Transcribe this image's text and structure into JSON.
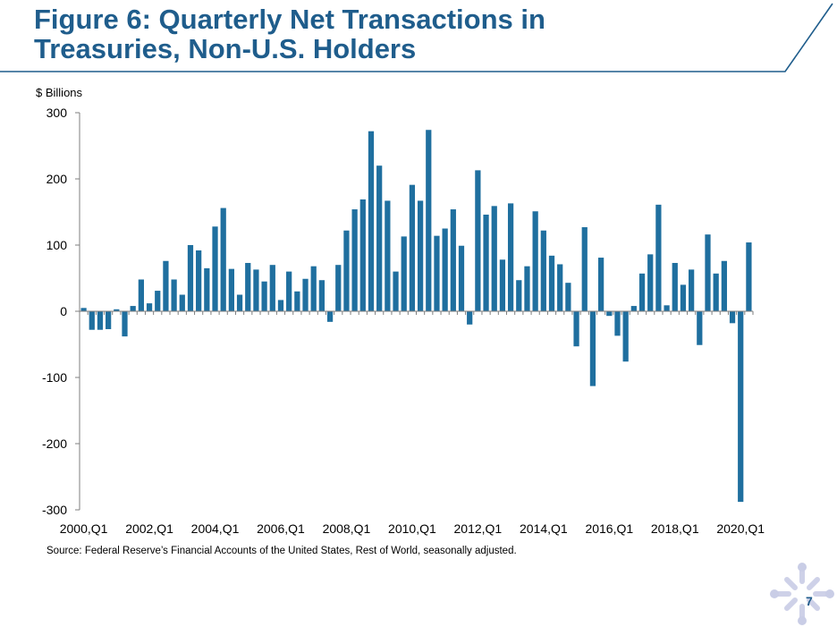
{
  "slide": {
    "title_line1": "Figure 6: Quarterly Net Transactions in",
    "title_line2": "Treasuries, Non-U.S. Holders",
    "unit_label": "$ Billions",
    "source": "Source: Federal Reserve’s Financial Accounts of the United States, Rest of World, seasonally adjusted.",
    "page_number": "7",
    "accent_color": "#1f5d8c",
    "logo_icon": "federal-reserve-emblem-icon"
  },
  "chart_data": {
    "type": "bar",
    "title": "",
    "xlabel": "",
    "ylabel": "$ Billions",
    "ylim": [
      -300,
      300
    ],
    "yticks": [
      300,
      200,
      100,
      0,
      -100,
      -200,
      -300
    ],
    "ytick_labels": [
      "300",
      "200",
      "100",
      "0",
      "-100",
      "-200",
      "-300"
    ],
    "xtick_labels": [
      "2000,Q1",
      "2002,Q1",
      "2004,Q1",
      "2006,Q1",
      "2008,Q1",
      "2010,Q1",
      "2012,Q1",
      "2014,Q1",
      "2016,Q1",
      "2018,Q1",
      "2020,Q1"
    ],
    "bar_color": "#1f6f9f",
    "grid": false,
    "categories": [
      "2000,Q1",
      "2000,Q2",
      "2000,Q3",
      "2000,Q4",
      "2001,Q1",
      "2001,Q2",
      "2001,Q3",
      "2001,Q4",
      "2002,Q1",
      "2002,Q2",
      "2002,Q3",
      "2002,Q4",
      "2003,Q1",
      "2003,Q2",
      "2003,Q3",
      "2003,Q4",
      "2004,Q1",
      "2004,Q2",
      "2004,Q3",
      "2004,Q4",
      "2005,Q1",
      "2005,Q2",
      "2005,Q3",
      "2005,Q4",
      "2006,Q1",
      "2006,Q2",
      "2006,Q3",
      "2006,Q4",
      "2007,Q1",
      "2007,Q2",
      "2007,Q3",
      "2007,Q4",
      "2008,Q1",
      "2008,Q2",
      "2008,Q3",
      "2008,Q4",
      "2009,Q1",
      "2009,Q2",
      "2009,Q3",
      "2009,Q4",
      "2010,Q1",
      "2010,Q2",
      "2010,Q3",
      "2010,Q4",
      "2011,Q1",
      "2011,Q2",
      "2011,Q3",
      "2011,Q4",
      "2012,Q1",
      "2012,Q2",
      "2012,Q3",
      "2012,Q4",
      "2013,Q1",
      "2013,Q2",
      "2013,Q3",
      "2013,Q4",
      "2014,Q1",
      "2014,Q2",
      "2014,Q3",
      "2014,Q4",
      "2015,Q1",
      "2015,Q2",
      "2015,Q3",
      "2015,Q4",
      "2016,Q1",
      "2016,Q2",
      "2016,Q3",
      "2016,Q4",
      "2017,Q1",
      "2017,Q2",
      "2017,Q3",
      "2017,Q4",
      "2018,Q1",
      "2018,Q2",
      "2018,Q3",
      "2018,Q4",
      "2019,Q1",
      "2019,Q2",
      "2019,Q3",
      "2019,Q4",
      "2020,Q1",
      "2020,Q2"
    ],
    "values": [
      5,
      -28,
      -28,
      -27,
      3,
      -38,
      8,
      48,
      12,
      31,
      76,
      48,
      25,
      100,
      92,
      65,
      128,
      156,
      64,
      25,
      73,
      63,
      45,
      70,
      17,
      60,
      30,
      49,
      68,
      47,
      -16,
      70,
      122,
      154,
      169,
      272,
      220,
      167,
      60,
      113,
      191,
      167,
      274,
      114,
      125,
      154,
      99,
      -20,
      213,
      146,
      159,
      78,
      163,
      47,
      68,
      151,
      122,
      84,
      71,
      43,
      -53,
      127,
      -113,
      81,
      -7,
      -37,
      -76,
      8,
      57,
      86,
      161,
      9,
      73,
      40,
      63,
      -51,
      116,
      57,
      76,
      -18,
      -288,
      104
    ]
  }
}
